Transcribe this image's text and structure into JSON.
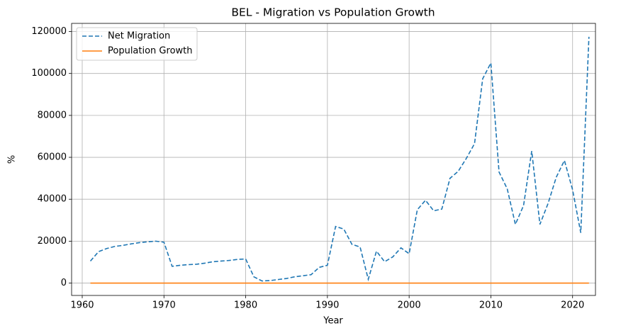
{
  "chart_data": {
    "type": "line",
    "title": "BEL - Migration vs Population Growth",
    "xlabel": "Year",
    "ylabel": "%",
    "x": [
      1961,
      1962,
      1963,
      1964,
      1965,
      1966,
      1967,
      1968,
      1969,
      1970,
      1971,
      1972,
      1973,
      1974,
      1975,
      1976,
      1977,
      1978,
      1979,
      1980,
      1981,
      1982,
      1983,
      1984,
      1985,
      1986,
      1987,
      1988,
      1989,
      1990,
      1991,
      1992,
      1993,
      1994,
      1995,
      1996,
      1997,
      1998,
      1999,
      2000,
      2001,
      2002,
      2003,
      2004,
      2005,
      2006,
      2007,
      2008,
      2009,
      2010,
      2011,
      2012,
      2013,
      2014,
      2015,
      2016,
      2017,
      2018,
      2019,
      2020,
      2021,
      2022
    ],
    "series": [
      {
        "name": "Net Migration",
        "color": "#1f77b4",
        "linestyle": "dashed",
        "values": [
          10500,
          15000,
          16500,
          17500,
          18000,
          18700,
          19300,
          19700,
          20000,
          19500,
          8000,
          8500,
          8800,
          9000,
          9500,
          10200,
          10500,
          10800,
          11300,
          11500,
          3000,
          1000,
          1200,
          1700,
          2200,
          3000,
          3500,
          4000,
          7500,
          8500,
          27000,
          25800,
          18500,
          17200,
          1800,
          15200,
          10200,
          12500,
          16800,
          14000,
          35000,
          39500,
          34500,
          35300,
          50000,
          53300,
          59500,
          66500,
          97500,
          105000,
          53000,
          45000,
          28000,
          37000,
          63000,
          28000,
          38000,
          50500,
          58500,
          44500,
          24000,
          117500
        ]
      },
      {
        "name": "Population Growth",
        "color": "#ff7f0e",
        "linestyle": "solid",
        "values": [
          0.6,
          0.6,
          0.8,
          0.8,
          0.7,
          0.6,
          0.5,
          0.3,
          0.3,
          0.1,
          0.2,
          0.3,
          0.3,
          0.3,
          0.2,
          0.1,
          0.1,
          0.1,
          0.1,
          0.1,
          0.1,
          0.0,
          0.0,
          0.0,
          0.1,
          0.1,
          0.1,
          0.1,
          0.2,
          0.3,
          0.4,
          0.4,
          0.4,
          0.3,
          0.1,
          0.2,
          0.2,
          0.1,
          0.2,
          0.2,
          0.4,
          0.5,
          0.5,
          0.5,
          0.6,
          0.7,
          0.8,
          0.8,
          0.8,
          1.0,
          0.9,
          0.5,
          0.4,
          0.4,
          0.6,
          0.5,
          0.5,
          0.5,
          0.5,
          0.4,
          0.4,
          0.8
        ]
      }
    ],
    "xlim": [
      1958.7,
      2022.8
    ],
    "xticks": [
      1960,
      1970,
      1980,
      1990,
      2000,
      2010,
      2020
    ],
    "ylim": [
      -5900,
      123900
    ],
    "yticks": [
      0,
      20000,
      40000,
      60000,
      80000,
      100000,
      120000
    ],
    "grid": true,
    "legend": "upper left"
  }
}
